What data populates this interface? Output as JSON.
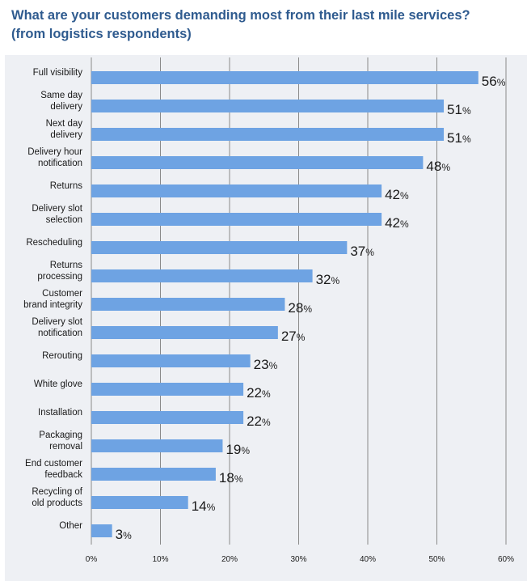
{
  "title_line1": "What are your customers demanding most from their last mile services?",
  "title_line2": "(from logistics respondents)",
  "chart_data": {
    "type": "bar",
    "orientation": "horizontal",
    "title": "What are your customers demanding most from their last mile services? (from logistics respondents)",
    "categories": [
      [
        "Full visibility"
      ],
      [
        "Same day",
        "delivery"
      ],
      [
        "Next day",
        "delivery"
      ],
      [
        "Delivery hour",
        "notification"
      ],
      [
        "Returns"
      ],
      [
        "Delivery slot",
        "selection"
      ],
      [
        "Rescheduling"
      ],
      [
        "Returns",
        "processing"
      ],
      [
        "Customer",
        "brand integrity"
      ],
      [
        "Delivery slot",
        "notification"
      ],
      [
        "Rerouting"
      ],
      [
        "White glove"
      ],
      [
        "Installation"
      ],
      [
        "Packaging",
        "removal"
      ],
      [
        "End customer",
        "feedback"
      ],
      [
        "Recycling of",
        "old products"
      ],
      [
        "Other"
      ]
    ],
    "values": [
      56,
      51,
      51,
      48,
      42,
      42,
      37,
      32,
      28,
      27,
      23,
      22,
      22,
      19,
      18,
      14,
      3
    ],
    "value_suffix": "%",
    "xlim": [
      0,
      60
    ],
    "xticks": [
      0,
      10,
      20,
      30,
      40,
      50,
      60
    ],
    "tick_labels": [
      "0%",
      "10%",
      "20%",
      "30%",
      "40%",
      "50%",
      "60%"
    ],
    "xlabel": "",
    "ylabel": "",
    "colors": {
      "bar": "#6ea3e3",
      "grid": "#8a8a8a",
      "title": "#2f5b8f",
      "panel": "#eef0f4"
    }
  }
}
